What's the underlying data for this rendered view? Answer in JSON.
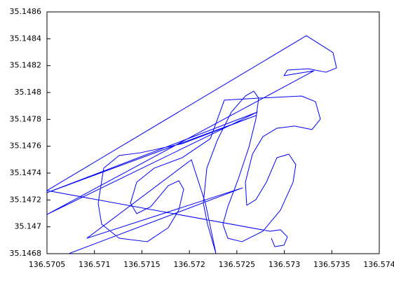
{
  "chart_data": {
    "type": "line",
    "x": [
      136.570729,
      136.57256,
      136.570921,
      136.572021,
      136.572169,
      136.57228,
      136.572191,
      136.572147,
      136.572184,
      136.572294,
      136.572442,
      136.57259,
      136.572678,
      136.57273,
      136.5727,
      136.572627,
      136.572516,
      136.572405,
      136.572353,
      136.572405,
      136.572553,
      136.572774,
      136.572959,
      136.573092,
      136.573121,
      136.573048,
      136.572922,
      136.572811,
      136.5727,
      136.572604,
      136.57259,
      136.572664,
      136.572774,
      136.572922,
      136.573107,
      136.573291,
      136.57338,
      136.573328,
      136.57318,
      136.572737,
      136.572368,
      136.572221,
      136.571925,
      136.57163,
      136.571445,
      136.571379,
      136.571445,
      136.571593,
      136.571777,
      136.571888,
      136.57194,
      136.571888,
      136.571777,
      136.571556,
      136.571261,
      136.571076,
      136.571039,
      136.571098,
      136.571261,
      136.571482,
      136.571925,
      136.5727,
      136.5705,
      136.572715,
      136.5705,
      136.573313,
      136.572996,
      136.573033,
      136.573254,
      136.573439,
      136.57355,
      136.573513,
      136.573232,
      136.5705,
      136.572848,
      136.572959,
      136.573033,
      136.572996,
      136.5729,
      136.572863
    ],
    "series": [
      {
        "color": "#0000ff",
        "values": [
          35.1468,
          35.14729,
          35.146915,
          35.147499,
          35.147176,
          35.1468,
          35.147019,
          35.147176,
          35.147437,
          35.147645,
          35.147854,
          35.147974,
          35.14801,
          35.147958,
          35.147802,
          35.147593,
          35.147358,
          35.14715,
          35.147019,
          35.146915,
          35.146889,
          35.146967,
          35.147124,
          35.147332,
          35.147463,
          35.147541,
          35.147515,
          35.147332,
          35.147202,
          35.14716,
          35.147332,
          35.147541,
          35.147671,
          35.147734,
          35.14775,
          35.147724,
          35.147802,
          35.147932,
          35.147974,
          35.147958,
          35.147943,
          35.147656,
          35.147515,
          35.147437,
          35.147332,
          35.147176,
          35.147098,
          35.14715,
          35.147306,
          35.147343,
          35.14728,
          35.147124,
          35.146993,
          35.146889,
          35.146915,
          35.147019,
          35.147176,
          35.147437,
          35.147531,
          35.147551,
          35.147619,
          35.147828,
          35.147254,
          35.147854,
          35.147092,
          35.148162,
          35.148125,
          35.148167,
          35.148177,
          35.148151,
          35.148183,
          35.148297,
          35.148423,
          35.14727,
          35.146967,
          35.146978,
          35.146925,
          35.146863,
          35.146852,
          35.146915
        ]
      }
    ],
    "xlim": [
      136.5705,
      136.574
    ],
    "xticks": [
      136.5705,
      136.571,
      136.5715,
      136.572,
      136.5725,
      136.573,
      136.5735,
      136.574
    ],
    "ylim": [
      35.1468,
      35.1486
    ],
    "yticks": [
      35.1468,
      35.147,
      35.1472,
      35.1474,
      35.1476,
      35.1478,
      35.148,
      35.1482,
      35.1484,
      35.1486
    ],
    "grid": false
  }
}
